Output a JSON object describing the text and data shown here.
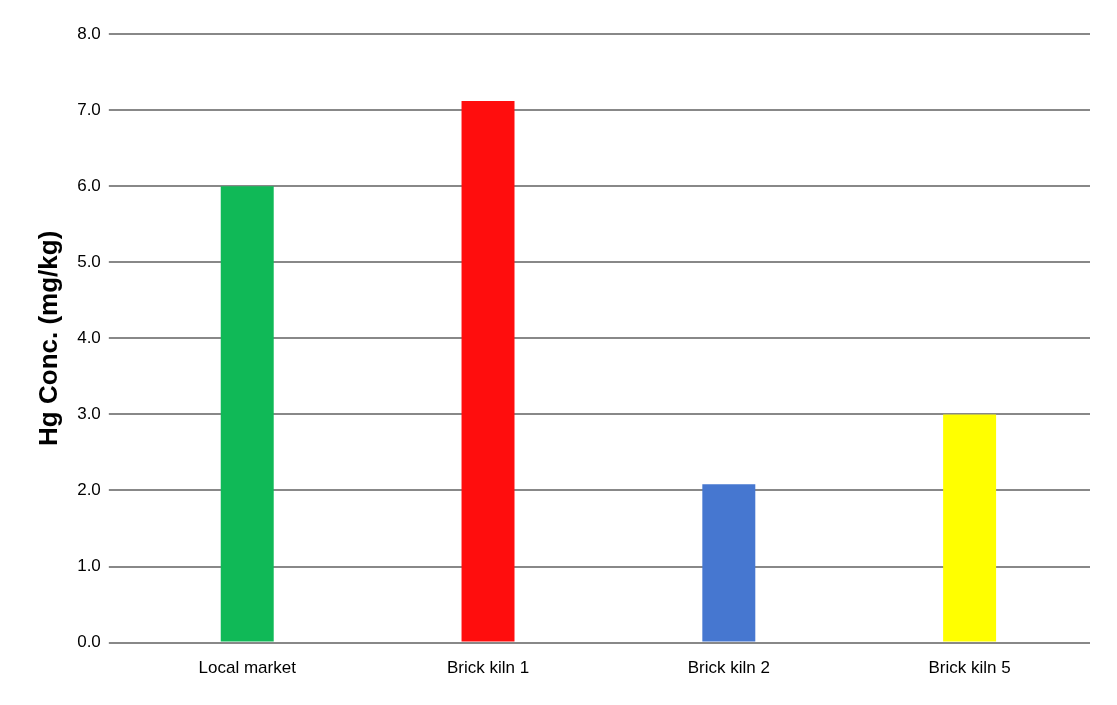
{
  "chart_data": {
    "type": "bar",
    "ylabel": "Hg Conc. (mg/kg)",
    "categories": [
      "Local market",
      "Brick kiln 1",
      "Brick kiln 2",
      "Brick kiln 5"
    ],
    "values": [
      6.0,
      7.12,
      2.08,
      3.0
    ],
    "colors": [
      "#10b957",
      "#ff0d0d",
      "#4677d0",
      "#ffff00"
    ],
    "ylim": [
      0,
      8
    ],
    "yticks": [
      {
        "value": 0,
        "label": "0.0"
      },
      {
        "value": 1,
        "label": "1.0"
      },
      {
        "value": 2,
        "label": "2.0"
      },
      {
        "value": 3,
        "label": "3.0"
      },
      {
        "value": 4,
        "label": "4.0"
      },
      {
        "value": 5,
        "label": "5.0"
      },
      {
        "value": 6,
        "label": "6.0"
      },
      {
        "value": 7,
        "label": "7.0"
      },
      {
        "value": 8,
        "label": "8.0"
      }
    ],
    "grid": "y",
    "legend": false
  }
}
